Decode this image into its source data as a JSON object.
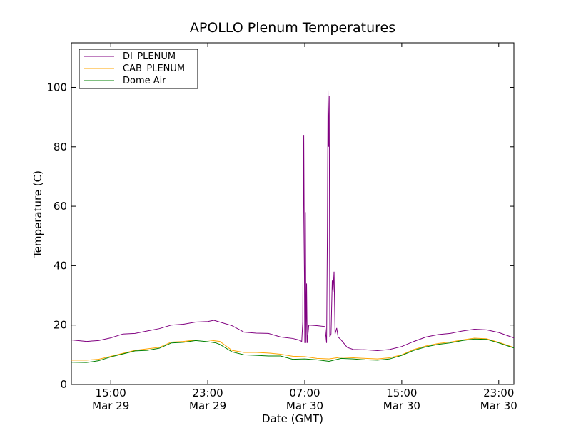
{
  "chart_data": {
    "type": "line",
    "title": "APOLLO Plenum Temperatures",
    "xlabel": "Date (GMT)",
    "ylabel": "Temperature (C)",
    "ylim": [
      0,
      115
    ],
    "xlim": [
      "2012-03-29 11:45",
      "2012-03-31 00:15"
    ],
    "y_ticks": [
      0,
      20,
      40,
      60,
      80,
      100
    ],
    "x_ticks": [
      {
        "at": "2012-03-29 15:00",
        "line1": "15:00",
        "line2": "Mar 29"
      },
      {
        "at": "2012-03-29 23:00",
        "line1": "23:00",
        "line2": "Mar 29"
      },
      {
        "at": "2012-03-30 07:00",
        "line1": "07:00",
        "line2": "Mar 30"
      },
      {
        "at": "2012-03-30 15:00",
        "line1": "15:00",
        "line2": "Mar 30"
      },
      {
        "at": "2012-03-30 23:00",
        "line1": "23:00",
        "line2": "Mar 30"
      }
    ],
    "grid": false,
    "legend_position": "top-left",
    "series": [
      {
        "name": "DI_PLENUM",
        "color": "#800080",
        "points": [
          [
            "2012-03-29 11:45",
            15.0
          ],
          [
            "2012-03-29 13:00",
            14.5
          ],
          [
            "2012-03-29 14:00",
            14.8
          ],
          [
            "2012-03-29 15:00",
            15.7
          ],
          [
            "2012-03-29 16:00",
            17.0
          ],
          [
            "2012-03-29 17:00",
            17.2
          ],
          [
            "2012-03-29 18:00",
            18.0
          ],
          [
            "2012-03-29 19:00",
            18.8
          ],
          [
            "2012-03-29 20:00",
            20.0
          ],
          [
            "2012-03-29 21:00",
            20.3
          ],
          [
            "2012-03-29 22:00",
            21.0
          ],
          [
            "2012-03-29 23:00",
            21.2
          ],
          [
            "2012-03-29 23:30",
            21.6
          ],
          [
            "2012-03-30 00:00",
            21.0
          ],
          [
            "2012-03-30 01:00",
            19.8
          ],
          [
            "2012-03-30 02:00",
            17.6
          ],
          [
            "2012-03-30 03:00",
            17.3
          ],
          [
            "2012-03-30 04:00",
            17.2
          ],
          [
            "2012-03-30 05:00",
            16.0
          ],
          [
            "2012-03-30 06:00",
            15.5
          ],
          [
            "2012-03-30 06:30",
            15.0
          ],
          [
            "2012-03-30 06:45",
            14.5
          ],
          [
            "2012-03-30 06:50",
            21.0
          ],
          [
            "2012-03-30 06:55",
            84.0
          ],
          [
            "2012-03-30 07:00",
            14.0
          ],
          [
            "2012-03-30 07:03",
            58.0
          ],
          [
            "2012-03-30 07:06",
            14.0
          ],
          [
            "2012-03-30 07:09",
            34.0
          ],
          [
            "2012-03-30 07:12",
            14.0
          ],
          [
            "2012-03-30 07:20",
            20.0
          ],
          [
            "2012-03-30 08:00",
            19.8
          ],
          [
            "2012-03-30 08:40",
            19.5
          ],
          [
            "2012-03-30 08:48",
            14.0
          ],
          [
            "2012-03-30 08:52",
            52.0
          ],
          [
            "2012-03-30 08:55",
            99.0
          ],
          [
            "2012-03-30 08:58",
            80.0
          ],
          [
            "2012-03-30 09:01",
            97.0
          ],
          [
            "2012-03-30 09:04",
            16.0
          ],
          [
            "2012-03-30 09:10",
            17.0
          ],
          [
            "2012-03-30 09:16",
            35.0
          ],
          [
            "2012-03-30 09:20",
            31.0
          ],
          [
            "2012-03-30 09:25",
            38.0
          ],
          [
            "2012-03-30 09:30",
            17.0
          ],
          [
            "2012-03-30 09:38",
            19.0
          ],
          [
            "2012-03-30 09:45",
            16.0
          ],
          [
            "2012-03-30 10:00",
            15.0
          ],
          [
            "2012-03-30 10:30",
            12.5
          ],
          [
            "2012-03-30 11:00",
            11.8
          ],
          [
            "2012-03-30 12:00",
            11.7
          ],
          [
            "2012-03-30 13:00",
            11.4
          ],
          [
            "2012-03-30 14:00",
            11.8
          ],
          [
            "2012-03-30 15:00",
            12.8
          ],
          [
            "2012-03-30 16:00",
            14.5
          ],
          [
            "2012-03-30 17:00",
            16.0
          ],
          [
            "2012-03-30 18:00",
            16.8
          ],
          [
            "2012-03-30 19:00",
            17.2
          ],
          [
            "2012-03-30 20:00",
            18.0
          ],
          [
            "2012-03-30 21:00",
            18.6
          ],
          [
            "2012-03-30 22:00",
            18.4
          ],
          [
            "2012-03-30 23:00",
            17.5
          ],
          [
            "2012-03-31 00:15",
            15.7
          ]
        ]
      },
      {
        "name": "CAB_PLENUM",
        "color": "#ffa500",
        "points": [
          [
            "2012-03-29 11:45",
            8.2
          ],
          [
            "2012-03-29 13:00",
            8.2
          ],
          [
            "2012-03-29 14:00",
            8.5
          ],
          [
            "2012-03-29 15:00",
            9.5
          ],
          [
            "2012-03-29 16:00",
            10.5
          ],
          [
            "2012-03-29 17:00",
            11.5
          ],
          [
            "2012-03-29 18:00",
            12.0
          ],
          [
            "2012-03-29 19:00",
            12.5
          ],
          [
            "2012-03-29 20:00",
            14.3
          ],
          [
            "2012-03-29 21:00",
            14.5
          ],
          [
            "2012-03-29 22:00",
            15.0
          ],
          [
            "2012-03-29 23:00",
            15.0
          ],
          [
            "2012-03-30 00:00",
            14.5
          ],
          [
            "2012-03-30 01:00",
            11.5
          ],
          [
            "2012-03-30 02:00",
            10.8
          ],
          [
            "2012-03-30 03:00",
            10.8
          ],
          [
            "2012-03-30 04:00",
            10.6
          ],
          [
            "2012-03-30 05:00",
            10.2
          ],
          [
            "2012-03-30 06:00",
            9.5
          ],
          [
            "2012-03-30 07:00",
            9.4
          ],
          [
            "2012-03-30 08:00",
            8.8
          ],
          [
            "2012-03-30 09:00",
            8.6
          ],
          [
            "2012-03-30 10:00",
            9.2
          ],
          [
            "2012-03-30 11:00",
            9.0
          ],
          [
            "2012-03-30 12:00",
            8.8
          ],
          [
            "2012-03-30 13:00",
            8.6
          ],
          [
            "2012-03-30 14:00",
            9.0
          ],
          [
            "2012-03-30 15:00",
            10.0
          ],
          [
            "2012-03-30 16:00",
            11.8
          ],
          [
            "2012-03-30 17:00",
            13.0
          ],
          [
            "2012-03-30 18:00",
            13.8
          ],
          [
            "2012-03-30 19:00",
            14.3
          ],
          [
            "2012-03-30 20:00",
            15.0
          ],
          [
            "2012-03-30 21:00",
            15.6
          ],
          [
            "2012-03-30 22:00",
            15.4
          ],
          [
            "2012-03-30 23:00",
            14.2
          ],
          [
            "2012-03-31 00:15",
            12.5
          ]
        ]
      },
      {
        "name": "Dome Air",
        "color": "#008000",
        "points": [
          [
            "2012-03-29 11:45",
            7.5
          ],
          [
            "2012-03-29 13:00",
            7.4
          ],
          [
            "2012-03-29 14:00",
            8.0
          ],
          [
            "2012-03-29 15:00",
            9.3
          ],
          [
            "2012-03-29 16:00",
            10.3
          ],
          [
            "2012-03-29 17:00",
            11.3
          ],
          [
            "2012-03-29 18:00",
            11.5
          ],
          [
            "2012-03-29 19:00",
            12.2
          ],
          [
            "2012-03-29 20:00",
            14.0
          ],
          [
            "2012-03-29 21:00",
            14.2
          ],
          [
            "2012-03-29 22:00",
            14.8
          ],
          [
            "2012-03-29 23:00",
            14.4
          ],
          [
            "2012-03-29 23:40",
            14.0
          ],
          [
            "2012-03-30 00:00",
            13.5
          ],
          [
            "2012-03-30 01:00",
            11.0
          ],
          [
            "2012-03-30 02:00",
            10.0
          ],
          [
            "2012-03-30 03:00",
            9.8
          ],
          [
            "2012-03-30 04:00",
            9.6
          ],
          [
            "2012-03-30 05:00",
            9.6
          ],
          [
            "2012-03-30 06:00",
            8.5
          ],
          [
            "2012-03-30 07:00",
            8.6
          ],
          [
            "2012-03-30 08:00",
            8.3
          ],
          [
            "2012-03-30 09:00",
            7.8
          ],
          [
            "2012-03-30 10:00",
            8.8
          ],
          [
            "2012-03-30 11:00",
            8.6
          ],
          [
            "2012-03-30 12:00",
            8.3
          ],
          [
            "2012-03-30 13:00",
            8.2
          ],
          [
            "2012-03-30 14:00",
            8.6
          ],
          [
            "2012-03-30 15:00",
            9.8
          ],
          [
            "2012-03-30 16:00",
            11.5
          ],
          [
            "2012-03-30 17:00",
            12.7
          ],
          [
            "2012-03-30 18:00",
            13.5
          ],
          [
            "2012-03-30 19:00",
            14.0
          ],
          [
            "2012-03-30 20:00",
            14.8
          ],
          [
            "2012-03-30 21:00",
            15.3
          ],
          [
            "2012-03-30 22:00",
            15.2
          ],
          [
            "2012-03-30 23:00",
            14.0
          ],
          [
            "2012-03-31 00:15",
            12.3
          ]
        ]
      }
    ]
  }
}
